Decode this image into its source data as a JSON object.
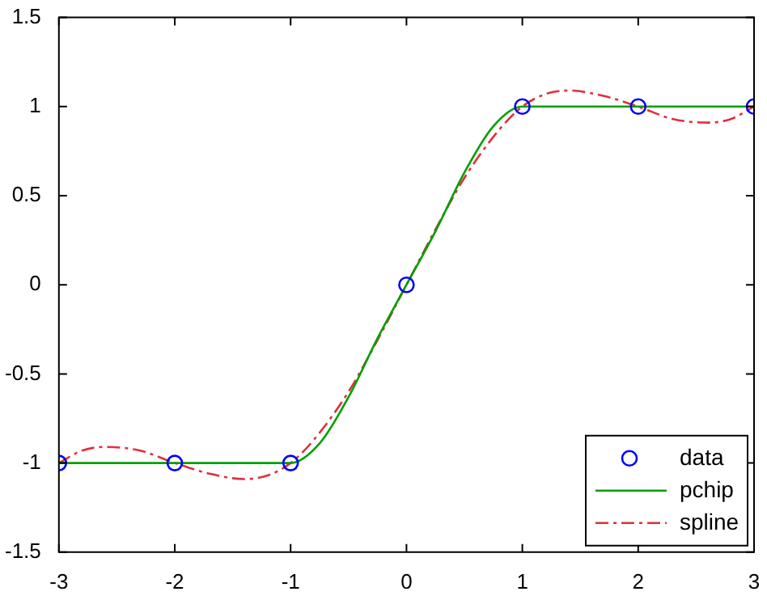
{
  "chart_data": {
    "type": "line",
    "xlim": [
      -3,
      3
    ],
    "xticks": [
      -3,
      -2,
      -1,
      0,
      1,
      2,
      3
    ],
    "ylim": [
      -1.5,
      1.5
    ],
    "yticks": [
      -1.5,
      -1,
      -0.5,
      0,
      0.5,
      1,
      1.5
    ],
    "grid": false,
    "legend": "bottom right",
    "series": [
      {
        "name": "data",
        "type": "scatter",
        "marker": "circle",
        "color": "#0000ff",
        "x": [
          -3,
          -2,
          -1,
          0,
          1,
          2,
          3
        ],
        "values": [
          -1,
          -1,
          -1,
          0,
          1,
          1,
          1
        ]
      },
      {
        "name": "pchip",
        "type": "line",
        "line_style": "solid",
        "color": "#00a000",
        "x": [
          -3,
          -2,
          -1,
          -0.75,
          -0.5,
          -0.25,
          0,
          0.25,
          0.5,
          0.75,
          1,
          2,
          3
        ],
        "values": [
          -1,
          -1,
          -1,
          -0.89,
          -0.63,
          -0.3,
          0,
          0.3,
          0.63,
          0.89,
          1,
          1,
          1
        ]
      },
      {
        "name": "spline",
        "type": "line",
        "line_style": "dashed",
        "color": "#e0303a",
        "x": [
          -3,
          -2.8,
          -2.6,
          -2.3,
          -2,
          -1.7,
          -1.4,
          -1.2,
          -1,
          -0.8,
          -0.5,
          -0.25,
          0,
          0.25,
          0.5,
          0.8,
          1,
          1.2,
          1.4,
          1.7,
          2,
          2.3,
          2.6,
          2.8,
          3
        ],
        "values": [
          -1,
          -0.93,
          -0.91,
          -0.93,
          -1,
          -1.06,
          -1.09,
          -1.07,
          -1,
          -0.87,
          -0.6,
          -0.31,
          0,
          0.31,
          0.6,
          0.87,
          1,
          1.07,
          1.09,
          1.06,
          1,
          0.93,
          0.91,
          0.93,
          1
        ]
      }
    ]
  }
}
